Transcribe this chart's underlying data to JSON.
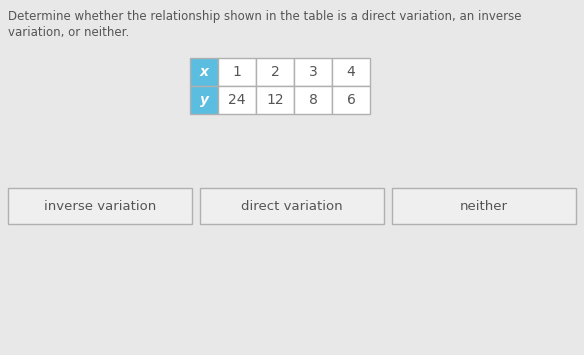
{
  "question_text_line1": "Determine whether the relationship shown in the table is a direct variation, an inverse",
  "question_text_line2": "variation, or neither.",
  "table": {
    "headers": [
      "x",
      "y"
    ],
    "x_values": [
      "1",
      "2",
      "3",
      "4"
    ],
    "y_values": [
      "24",
      "12",
      "8",
      "6"
    ],
    "header_bg": "#5bbde0",
    "cell_bg": "#ffffff",
    "border_color": "#b0b0b0"
  },
  "buttons": [
    {
      "label": "inverse variation"
    },
    {
      "label": "direct variation"
    },
    {
      "label": "neither"
    }
  ],
  "bg_color": "#e8e8e8",
  "text_color": "#555555",
  "button_bg": "#efefef",
  "button_border": "#b0b0b0",
  "font_size_question": 8.5,
  "font_size_table": 10,
  "font_size_button": 9.5
}
